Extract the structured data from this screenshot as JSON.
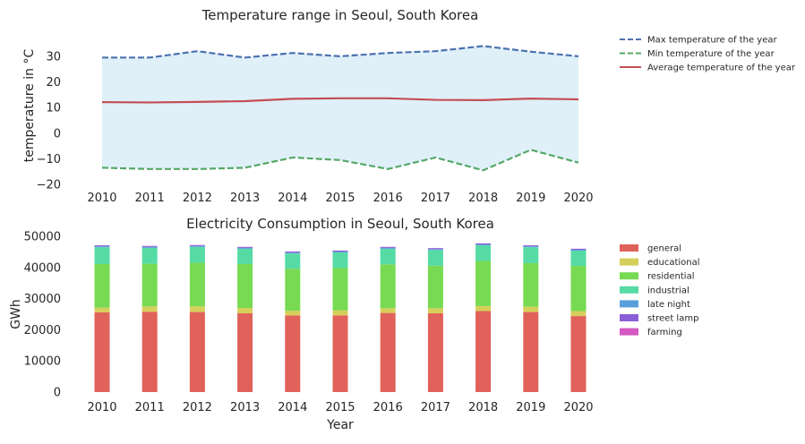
{
  "chart_data": [
    {
      "type": "line",
      "title": "Temperature range in Seoul, South Korea",
      "xlabel": "",
      "ylabel": "temperature in °C",
      "x": [
        2010,
        2011,
        2012,
        2013,
        2014,
        2015,
        2016,
        2017,
        2018,
        2019,
        2020
      ],
      "ylim": [
        -20,
        38
      ],
      "yticks": [
        -20,
        -10,
        0,
        10,
        20,
        30
      ],
      "grid": false,
      "legend_position": "outside-right",
      "fill_between": {
        "upper": "Max temperature of the year",
        "lower": "Min temperature of the year",
        "color": "#dff0f9"
      },
      "series": [
        {
          "name": "Max temperature of the year",
          "style": "dashed",
          "color": "#4c72b0",
          "values": [
            29.5,
            29.5,
            32.0,
            29.5,
            31.3,
            30.0,
            31.3,
            32.0,
            34.0,
            31.8,
            30.0
          ]
        },
        {
          "name": "Min temperature of the year",
          "style": "dashed",
          "color": "#55a868",
          "values": [
            -13.5,
            -14.0,
            -14.0,
            -13.5,
            -9.5,
            -10.5,
            -14.0,
            -9.5,
            -14.5,
            -6.5,
            -11.5
          ]
        },
        {
          "name": "Average temperature of the year",
          "style": "solid",
          "color": "#c44e52",
          "values": [
            12.1,
            12.0,
            12.2,
            12.5,
            13.4,
            13.6,
            13.6,
            13.0,
            12.9,
            13.5,
            13.2
          ]
        }
      ]
    },
    {
      "type": "bar",
      "stacked": true,
      "title": "Electricity Consumption in Seoul, South Korea",
      "xlabel": "Year",
      "ylabel": "GWh",
      "categories": [
        2010,
        2011,
        2012,
        2013,
        2014,
        2015,
        2016,
        2017,
        2018,
        2019,
        2020
      ],
      "ylim": [
        0,
        50000
      ],
      "yticks": [
        0,
        10000,
        20000,
        30000,
        40000,
        50000
      ],
      "grid": false,
      "legend_position": "outside-right",
      "series": [
        {
          "name": "general",
          "color": "#e0625a",
          "values": [
            25600,
            25800,
            25700,
            25300,
            24600,
            24600,
            25400,
            25300,
            26000,
            25700,
            24400
          ]
        },
        {
          "name": "educational",
          "color": "#d6cf5a",
          "values": [
            1500,
            1700,
            1800,
            1700,
            1500,
            1600,
            1500,
            1600,
            1600,
            1700,
            1600
          ]
        },
        {
          "name": "residential",
          "color": "#78da52",
          "values": [
            14000,
            13700,
            14000,
            14100,
            13500,
            13600,
            14100,
            13700,
            14500,
            14000,
            14500
          ]
        },
        {
          "name": "industrial",
          "color": "#56dba5",
          "values": [
            5400,
            5100,
            5100,
            4900,
            4900,
            5000,
            5000,
            5000,
            5000,
            5100,
            4900
          ]
        },
        {
          "name": "late night",
          "color": "#5a9fdc",
          "values": [
            300,
            300,
            300,
            300,
            300,
            300,
            300,
            300,
            300,
            300,
            300
          ]
        },
        {
          "name": "street lamp",
          "color": "#8a5ed6",
          "values": [
            300,
            300,
            300,
            300,
            300,
            300,
            300,
            300,
            300,
            300,
            300
          ]
        },
        {
          "name": "farming",
          "color": "#d659c4",
          "values": [
            30,
            30,
            30,
            30,
            30,
            30,
            30,
            30,
            30,
            30,
            30
          ]
        }
      ]
    }
  ]
}
